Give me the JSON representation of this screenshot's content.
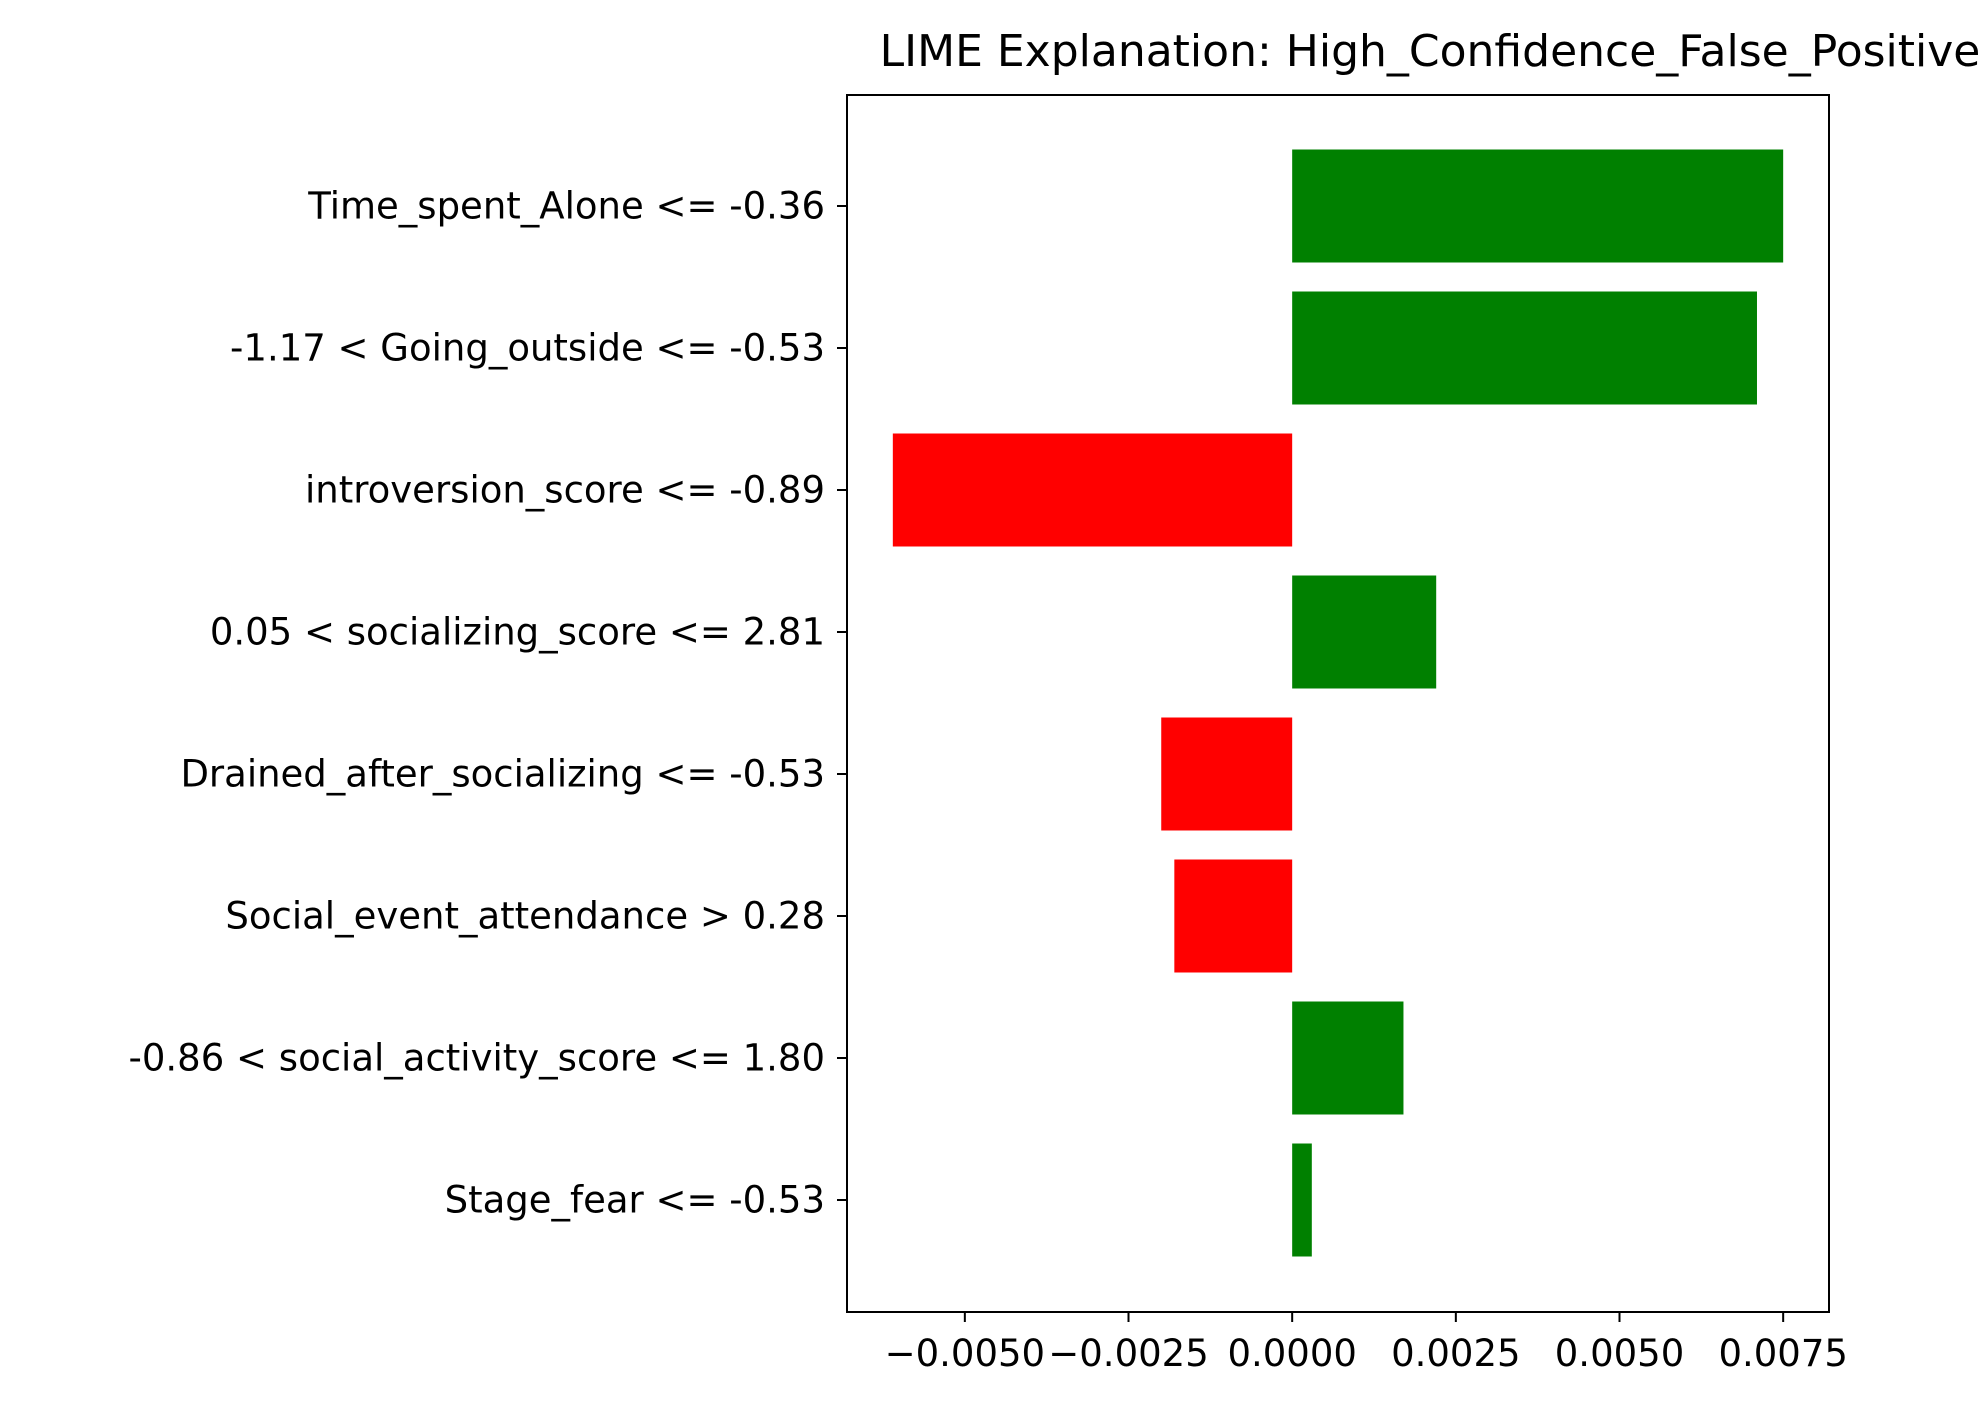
{
  "chart_data": {
    "type": "bar",
    "orientation": "horizontal",
    "title": "LIME Explanation: High_Confidence_False_Positive",
    "xlabel": "",
    "ylabel": "",
    "categories": [
      "Time_spent_Alone <= -0.36",
      "-1.17 < Going_outside <= -0.53",
      "introversion_score <= -0.89",
      "0.05 < socializing_score <= 2.81",
      "Drained_after_socializing <= -0.53",
      "Social_event_attendance > 0.28",
      "-0.86 < social_activity_score <= 1.80",
      "Stage_fear <= -0.53"
    ],
    "values": [
      0.0075,
      0.0071,
      -0.0061,
      0.0022,
      -0.002,
      -0.0018,
      0.0017,
      0.0003
    ],
    "xlim": [
      -0.0068,
      0.0082
    ],
    "xticks": [
      -0.005,
      -0.0025,
      0.0,
      0.0025,
      0.005,
      0.0075
    ],
    "xtick_labels": [
      "−0.0050",
      "−0.0025",
      "0.0000",
      "0.0025",
      "0.0050",
      "0.0075"
    ],
    "grid": false,
    "legend": "none",
    "colors": {
      "positive": "#008000",
      "negative": "#ff0000",
      "axis": "#000000"
    }
  }
}
